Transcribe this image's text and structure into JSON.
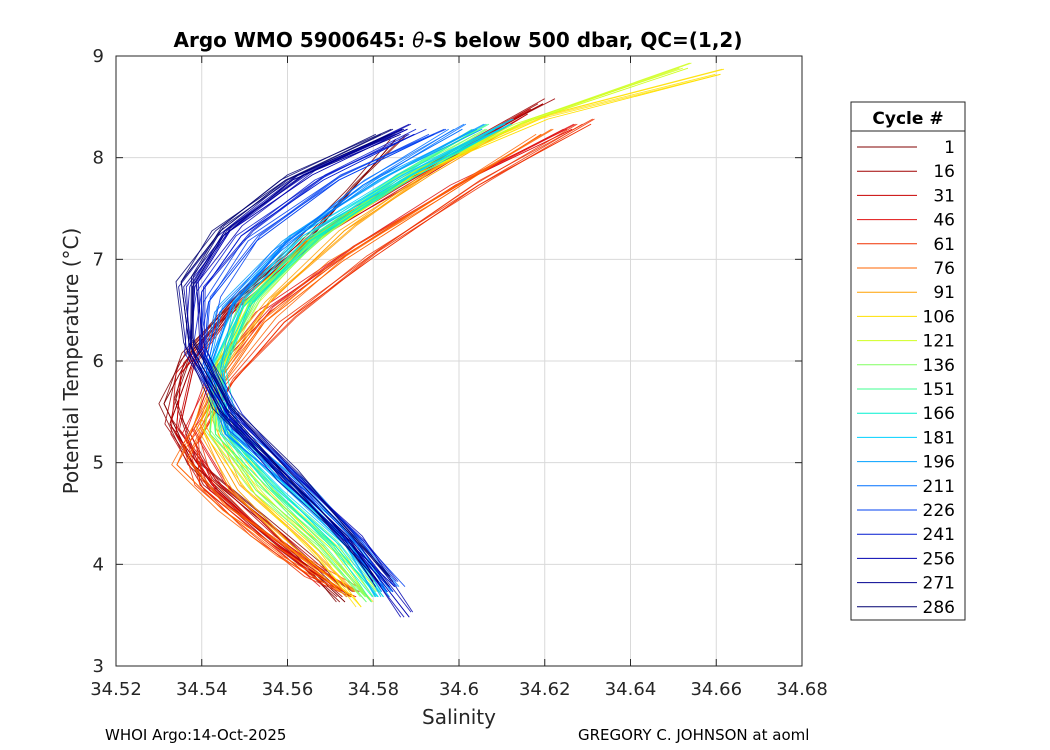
{
  "chart_data": {
    "type": "line",
    "title_pre": "Argo WMO 5900645: ",
    "title_theta": "θ",
    "title_post": "-S below 500 dbar,  QC=(1,2)",
    "xlabel": "Salinity",
    "ylabel": "Potential Temperature (°C)",
    "xlim": [
      34.52,
      34.68
    ],
    "ylim": [
      3,
      9
    ],
    "xticks": [
      34.52,
      34.54,
      34.56,
      34.58,
      34.6,
      34.62,
      34.64,
      34.66,
      34.68
    ],
    "xtick_labels": [
      "34.52",
      "34.54",
      "34.56",
      "34.58",
      "34.6",
      "34.62",
      "34.64",
      "34.66",
      "34.68"
    ],
    "yticks": [
      3,
      4,
      5,
      6,
      7,
      8,
      9
    ],
    "ytick_labels": [
      "3",
      "4",
      "5",
      "6",
      "7",
      "8",
      "9"
    ],
    "grid": true,
    "legend": {
      "title": "Cycle #",
      "placement": "outside-right",
      "entries": [
        {
          "label": "1",
          "color": "#800000"
        },
        {
          "label": "16",
          "color": "#a00000"
        },
        {
          "label": "31",
          "color": "#c80000"
        },
        {
          "label": "46",
          "color": "#e01010"
        },
        {
          "label": "61",
          "color": "#f03000"
        },
        {
          "label": "76",
          "color": "#ff6400"
        },
        {
          "label": "91",
          "color": "#ffa000"
        },
        {
          "label": "106",
          "color": "#ffe000"
        },
        {
          "label": "121",
          "color": "#d0ff20"
        },
        {
          "label": "136",
          "color": "#80ff60"
        },
        {
          "label": "151",
          "color": "#40ff90"
        },
        {
          "label": "166",
          "color": "#00f0d0"
        },
        {
          "label": "181",
          "color": "#00d0ff"
        },
        {
          "label": "196",
          "color": "#00a0ff"
        },
        {
          "label": "211",
          "color": "#0070ff"
        },
        {
          "label": "226",
          "color": "#0040f0"
        },
        {
          "label": "241",
          "color": "#0018d0"
        },
        {
          "label": "256",
          "color": "#0000b0"
        },
        {
          "label": "271",
          "color": "#000090"
        },
        {
          "label": "286",
          "color": "#000070"
        }
      ]
    },
    "series": [
      {
        "name": "1",
        "color": "#800000",
        "points": [
          [
            34.586,
            8.2
          ],
          [
            34.575,
            7.7
          ],
          [
            34.562,
            7.1
          ],
          [
            34.548,
            6.6
          ],
          [
            34.537,
            6.1
          ],
          [
            34.532,
            5.6
          ],
          [
            34.538,
            5.0
          ],
          [
            34.553,
            4.45
          ],
          [
            34.565,
            4.0
          ],
          [
            34.573,
            3.65
          ]
        ]
      },
      {
        "name": "16",
        "color": "#a00000",
        "points": [
          [
            34.62,
            8.55
          ],
          [
            34.598,
            8.05
          ],
          [
            34.57,
            7.35
          ],
          [
            34.55,
            6.7
          ],
          [
            34.537,
            6.0
          ],
          [
            34.533,
            5.4
          ],
          [
            34.542,
            4.8
          ],
          [
            34.556,
            4.3
          ],
          [
            34.566,
            3.95
          ],
          [
            34.574,
            3.7
          ]
        ]
      },
      {
        "name": "31",
        "color": "#c80000",
        "points": [
          [
            34.616,
            8.45
          ],
          [
            34.592,
            7.85
          ],
          [
            34.566,
            7.2
          ],
          [
            34.547,
            6.5
          ],
          [
            34.536,
            5.9
          ],
          [
            34.534,
            5.3
          ],
          [
            34.543,
            4.75
          ],
          [
            34.557,
            4.25
          ],
          [
            34.568,
            3.9
          ]
        ]
      },
      {
        "name": "46",
        "color": "#e01010",
        "points": [
          [
            34.626,
            8.3
          ],
          [
            34.6,
            7.75
          ],
          [
            34.575,
            7.1
          ],
          [
            34.555,
            6.5
          ],
          [
            34.543,
            5.9
          ],
          [
            34.537,
            5.3
          ],
          [
            34.544,
            4.75
          ],
          [
            34.558,
            4.2
          ],
          [
            34.57,
            3.8
          ]
        ]
      },
      {
        "name": "61",
        "color": "#f03000",
        "points": [
          [
            34.63,
            8.35
          ],
          [
            34.605,
            7.75
          ],
          [
            34.58,
            7.05
          ],
          [
            34.56,
            6.4
          ],
          [
            34.547,
            5.8
          ],
          [
            34.538,
            5.2
          ],
          [
            34.54,
            4.8
          ],
          [
            34.553,
            4.3
          ],
          [
            34.566,
            3.9
          ],
          [
            34.576,
            3.7
          ]
        ]
      },
      {
        "name": "76",
        "color": "#ff6400",
        "points": [
          [
            34.62,
            8.25
          ],
          [
            34.595,
            7.6
          ],
          [
            34.572,
            7.0
          ],
          [
            34.555,
            6.4
          ],
          [
            34.543,
            5.7
          ],
          [
            34.535,
            5.0
          ],
          [
            34.545,
            4.55
          ],
          [
            34.56,
            4.1
          ],
          [
            34.574,
            3.75
          ]
        ]
      },
      {
        "name": "91",
        "color": "#ffa000",
        "points": [
          [
            34.612,
            8.3
          ],
          [
            34.593,
            7.85
          ],
          [
            34.574,
            7.3
          ],
          [
            34.556,
            6.6
          ],
          [
            34.544,
            5.9
          ],
          [
            34.54,
            5.4
          ],
          [
            34.548,
            4.75
          ],
          [
            34.562,
            4.2
          ],
          [
            34.575,
            3.7
          ]
        ]
      },
      {
        "name": "106",
        "color": "#ffe000",
        "points": [
          [
            34.661,
            8.84
          ],
          [
            34.62,
            8.4
          ],
          [
            34.59,
            7.85
          ],
          [
            34.566,
            7.2
          ],
          [
            34.551,
            6.6
          ],
          [
            34.544,
            5.9
          ],
          [
            34.543,
            5.3
          ],
          [
            34.553,
            4.7
          ],
          [
            34.567,
            4.15
          ],
          [
            34.578,
            3.6
          ]
        ]
      },
      {
        "name": "121",
        "color": "#d0ff20",
        "points": [
          [
            34.653,
            8.9
          ],
          [
            34.615,
            8.35
          ],
          [
            34.588,
            7.8
          ],
          [
            34.566,
            7.2
          ],
          [
            34.551,
            6.55
          ],
          [
            34.544,
            5.9
          ],
          [
            34.544,
            5.3
          ],
          [
            34.556,
            4.7
          ],
          [
            34.57,
            4.15
          ],
          [
            34.58,
            3.65
          ]
        ]
      },
      {
        "name": "136",
        "color": "#80ff60",
        "points": [
          [
            34.605,
            8.25
          ],
          [
            34.586,
            7.8
          ],
          [
            34.567,
            7.2
          ],
          [
            34.552,
            6.6
          ],
          [
            34.544,
            5.95
          ],
          [
            34.543,
            5.35
          ],
          [
            34.553,
            4.75
          ],
          [
            34.568,
            4.2
          ],
          [
            34.579,
            3.7
          ]
        ]
      },
      {
        "name": "151",
        "color": "#40ff90",
        "points": [
          [
            34.605,
            8.3
          ],
          [
            34.585,
            7.8
          ],
          [
            34.565,
            7.2
          ],
          [
            34.55,
            6.55
          ],
          [
            34.543,
            5.9
          ],
          [
            34.544,
            5.3
          ],
          [
            34.556,
            4.75
          ],
          [
            34.57,
            4.2
          ],
          [
            34.58,
            3.65
          ]
        ]
      },
      {
        "name": "166",
        "color": "#00f0d0",
        "points": [
          [
            34.61,
            8.3
          ],
          [
            34.588,
            7.8
          ],
          [
            34.566,
            7.2
          ],
          [
            34.551,
            6.55
          ],
          [
            34.544,
            5.9
          ],
          [
            34.546,
            5.3
          ],
          [
            34.558,
            4.75
          ],
          [
            34.572,
            4.2
          ],
          [
            34.581,
            3.7
          ]
        ]
      },
      {
        "name": "181",
        "color": "#00d0ff",
        "points": [
          [
            34.612,
            8.35
          ],
          [
            34.588,
            7.85
          ],
          [
            34.564,
            7.25
          ],
          [
            34.549,
            6.6
          ],
          [
            34.543,
            5.95
          ],
          [
            34.546,
            5.3
          ],
          [
            34.56,
            4.75
          ],
          [
            34.574,
            4.2
          ],
          [
            34.582,
            3.7
          ]
        ]
      },
      {
        "name": "196",
        "color": "#00a0ff",
        "points": [
          [
            34.605,
            8.3
          ],
          [
            34.582,
            7.8
          ],
          [
            34.56,
            7.2
          ],
          [
            34.546,
            6.55
          ],
          [
            34.542,
            5.9
          ],
          [
            34.547,
            5.3
          ],
          [
            34.562,
            4.75
          ],
          [
            34.575,
            4.2
          ],
          [
            34.583,
            3.7
          ]
        ]
      },
      {
        "name": "211",
        "color": "#0070ff",
        "points": [
          [
            34.6,
            8.3
          ],
          [
            34.578,
            7.75
          ],
          [
            34.558,
            7.1
          ],
          [
            34.545,
            6.5
          ],
          [
            34.541,
            5.9
          ],
          [
            34.548,
            5.3
          ],
          [
            34.563,
            4.75
          ],
          [
            34.576,
            4.2
          ],
          [
            34.584,
            3.75
          ]
        ]
      },
      {
        "name": "226",
        "color": "#0040f0",
        "points": [
          [
            34.595,
            8.25
          ],
          [
            34.572,
            7.8
          ],
          [
            34.552,
            7.2
          ],
          [
            34.542,
            6.6
          ],
          [
            34.54,
            6.0
          ],
          [
            34.548,
            5.35
          ],
          [
            34.564,
            4.75
          ],
          [
            34.576,
            4.2
          ],
          [
            34.585,
            3.75
          ]
        ]
      },
      {
        "name": "241",
        "color": "#0018d0",
        "points": [
          [
            34.59,
            8.25
          ],
          [
            34.568,
            7.8
          ],
          [
            34.55,
            7.25
          ],
          [
            34.54,
            6.7
          ],
          [
            34.539,
            6.1
          ],
          [
            34.547,
            5.45
          ],
          [
            34.562,
            4.8
          ],
          [
            34.576,
            4.2
          ],
          [
            34.585,
            3.8
          ]
        ]
      },
      {
        "name": "256",
        "color": "#0000b0",
        "points": [
          [
            34.588,
            8.3
          ],
          [
            34.565,
            7.85
          ],
          [
            34.547,
            7.3
          ],
          [
            34.538,
            6.75
          ],
          [
            34.538,
            6.1
          ],
          [
            34.546,
            5.5
          ],
          [
            34.56,
            4.85
          ],
          [
            34.575,
            4.25
          ],
          [
            34.588,
            3.5
          ]
        ]
      },
      {
        "name": "271",
        "color": "#000090",
        "points": [
          [
            34.586,
            8.25
          ],
          [
            34.562,
            7.8
          ],
          [
            34.545,
            7.25
          ],
          [
            34.537,
            6.75
          ],
          [
            34.538,
            6.15
          ],
          [
            34.546,
            5.5
          ],
          [
            34.561,
            4.85
          ],
          [
            34.574,
            4.3
          ],
          [
            34.583,
            3.8
          ]
        ]
      },
      {
        "name": "286",
        "color": "#000070",
        "points": [
          [
            34.583,
            8.25
          ],
          [
            34.56,
            7.8
          ],
          [
            34.544,
            7.3
          ],
          [
            34.536,
            6.8
          ],
          [
            34.537,
            6.2
          ],
          [
            34.545,
            5.55
          ],
          [
            34.56,
            4.9
          ],
          [
            34.573,
            4.3
          ],
          [
            34.582,
            3.85
          ]
        ]
      }
    ],
    "footer_left": "WHOI Argo:14-Oct-2025",
    "footer_right": "GREGORY C. JOHNSON at aoml"
  }
}
